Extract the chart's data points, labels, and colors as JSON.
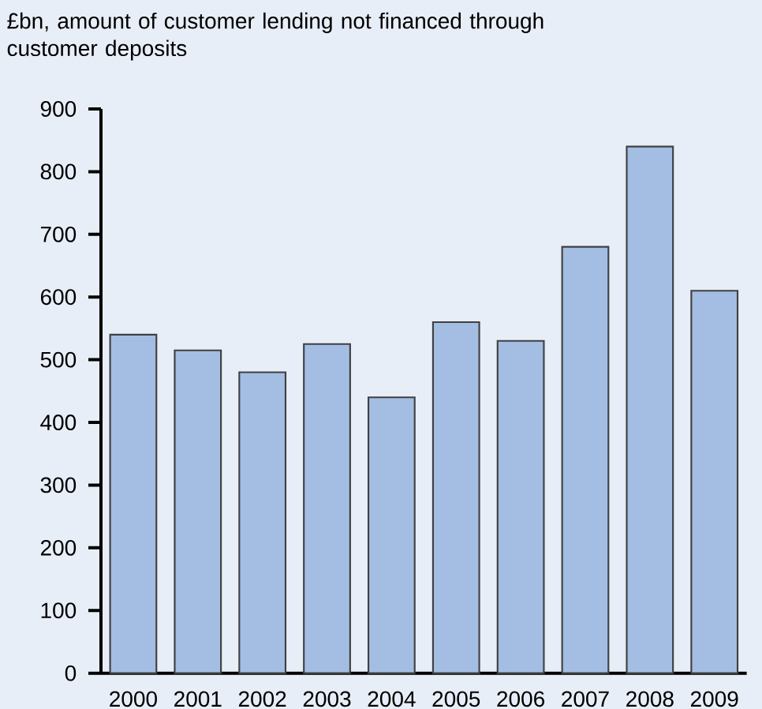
{
  "chart_data": {
    "type": "bar",
    "title": "£bn, amount of customer lending not financed through customer deposits",
    "categories": [
      "2000",
      "2001",
      "2002",
      "2003",
      "2004",
      "2005",
      "2006",
      "2007",
      "2008",
      "2009"
    ],
    "values": [
      540,
      515,
      480,
      525,
      440,
      560,
      530,
      680,
      840,
      610
    ],
    "color": "#a3bde3",
    "ylim": [
      0,
      900
    ],
    "yticks": [
      0,
      100,
      200,
      300,
      400,
      500,
      600,
      700,
      800,
      900
    ],
    "grid": false
  }
}
